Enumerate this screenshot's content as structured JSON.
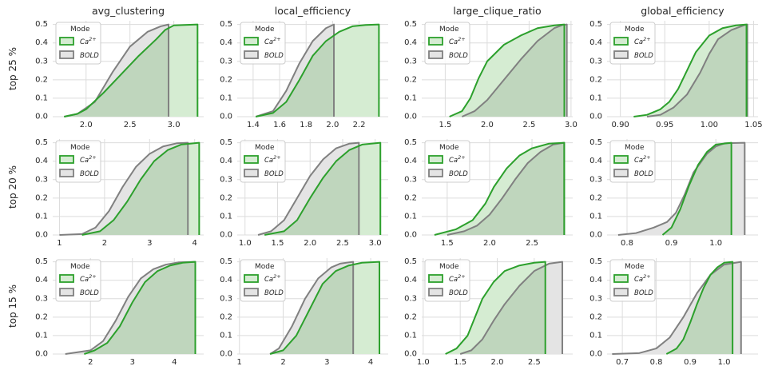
{
  "colors": {
    "ca": "#2ca02c",
    "bold": "#808080",
    "ca_fill": "#d5ecd2",
    "bold_fill": "#e4e4e4",
    "overlap_fill": "#bfd6bd",
    "grid": "#dcdcdc",
    "plot_bg": "#ffffff"
  },
  "row_labels": [
    "top 25 %",
    "top 20 %",
    "top 15 %"
  ],
  "col_titles": [
    "avg_clustering",
    "local_efficiency",
    "large_clique_ratio",
    "global_efficiency"
  ],
  "legend": {
    "title": "Mode",
    "entries": [
      {
        "key": "ca",
        "base": "Ca",
        "sup": "2+"
      },
      {
        "key": "bold",
        "base": "BOLD",
        "sup": ""
      }
    ]
  },
  "chart_data": [
    {
      "type": "area",
      "row": 0,
      "col": 0,
      "xlim": [
        1.62,
        3.34
      ],
      "ylim": [
        0,
        0.52
      ],
      "xticks": [
        2.0,
        2.5,
        3.0
      ],
      "xtick_labels": [
        "2.0",
        "2.5",
        "3.0"
      ],
      "yticks": [
        0,
        0.1,
        0.2,
        0.3,
        0.4,
        0.5
      ],
      "ytick_labels": [
        "0.0",
        "0.1",
        "0.2",
        "0.3",
        "0.4",
        "0.5"
      ],
      "series": [
        {
          "name": "Ca",
          "x": [
            1.75,
            1.9,
            2.0,
            2.2,
            2.4,
            2.6,
            2.8,
            2.9,
            3.0,
            3.27
          ],
          "y": [
            0,
            0.015,
            0.04,
            0.13,
            0.23,
            0.33,
            0.42,
            0.47,
            0.495,
            0.5
          ]
        },
        {
          "name": "BOLD",
          "x": [
            1.75,
            1.9,
            2.1,
            2.3,
            2.5,
            2.7,
            2.85,
            2.94
          ],
          "y": [
            0,
            0.015,
            0.08,
            0.24,
            0.38,
            0.46,
            0.49,
            0.5
          ]
        }
      ]
    },
    {
      "type": "area",
      "row": 0,
      "col": 1,
      "xlim": [
        1.28,
        2.42
      ],
      "ylim": [
        0,
        0.52
      ],
      "xticks": [
        1.4,
        1.6,
        1.8,
        2.0,
        2.2
      ],
      "xtick_labels": [
        "1.4",
        "1.6",
        "1.8",
        "2.0",
        "2.2"
      ],
      "yticks": [
        0,
        0.1,
        0.2,
        0.3,
        0.4,
        0.5
      ],
      "ytick_labels": [
        "0.0",
        "0.1",
        "0.2",
        "0.3",
        "0.4",
        "0.5"
      ],
      "series": [
        {
          "name": "Ca",
          "x": [
            1.42,
            1.55,
            1.65,
            1.75,
            1.85,
            1.95,
            2.05,
            2.15,
            2.25,
            2.35
          ],
          "y": [
            0,
            0.02,
            0.08,
            0.2,
            0.33,
            0.41,
            0.46,
            0.49,
            0.497,
            0.5
          ]
        },
        {
          "name": "BOLD",
          "x": [
            1.42,
            1.55,
            1.65,
            1.75,
            1.85,
            1.95,
            2.01
          ],
          "y": [
            0,
            0.03,
            0.14,
            0.29,
            0.41,
            0.48,
            0.5
          ]
        }
      ]
    },
    {
      "type": "area",
      "row": 0,
      "col": 2,
      "xlim": [
        1.22,
        3.02
      ],
      "ylim": [
        0,
        0.52
      ],
      "xticks": [
        1.5,
        2.0,
        2.5,
        3.0
      ],
      "xtick_labels": [
        "1.5",
        "2.0",
        "2.5",
        "3.0"
      ],
      "yticks": [
        0,
        0.1,
        0.2,
        0.3,
        0.4,
        0.5
      ],
      "ytick_labels": [
        "0.0",
        "0.1",
        "0.2",
        "0.3",
        "0.4",
        "0.5"
      ],
      "series": [
        {
          "name": "Ca",
          "x": [
            1.55,
            1.7,
            1.8,
            1.9,
            2.0,
            2.2,
            2.4,
            2.6,
            2.8,
            2.92
          ],
          "y": [
            0,
            0.03,
            0.1,
            0.21,
            0.3,
            0.39,
            0.44,
            0.48,
            0.495,
            0.5
          ]
        },
        {
          "name": "BOLD",
          "x": [
            1.7,
            1.85,
            2.0,
            2.2,
            2.4,
            2.6,
            2.8,
            2.9,
            2.95
          ],
          "y": [
            0,
            0.03,
            0.09,
            0.2,
            0.31,
            0.41,
            0.48,
            0.497,
            0.5
          ]
        }
      ]
    },
    {
      "type": "area",
      "row": 0,
      "col": 3,
      "xlim": [
        0.885,
        1.055
      ],
      "ylim": [
        0,
        0.52
      ],
      "xticks": [
        0.9,
        0.95,
        1.0,
        1.05
      ],
      "xtick_labels": [
        "0.90",
        "0.95",
        "1.00",
        "1.05"
      ],
      "yticks": [
        0,
        0.1,
        0.2,
        0.3,
        0.4,
        0.5
      ],
      "ytick_labels": [
        "0.0",
        "0.1",
        "0.2",
        "0.3",
        "0.4",
        "0.5"
      ],
      "series": [
        {
          "name": "Ca",
          "x": [
            0.915,
            0.93,
            0.945,
            0.955,
            0.965,
            0.975,
            0.985,
            1.0,
            1.015,
            1.03,
            1.042
          ],
          "y": [
            0,
            0.01,
            0.04,
            0.08,
            0.15,
            0.25,
            0.35,
            0.44,
            0.48,
            0.495,
            0.5
          ]
        },
        {
          "name": "BOLD",
          "x": [
            0.93,
            0.945,
            0.96,
            0.975,
            0.99,
            1.0,
            1.01,
            1.025,
            1.04,
            1.043
          ],
          "y": [
            0,
            0.01,
            0.05,
            0.12,
            0.24,
            0.34,
            0.42,
            0.47,
            0.497,
            0.5
          ]
        }
      ]
    },
    {
      "type": "area",
      "row": 1,
      "col": 0,
      "xlim": [
        0.85,
        4.2
      ],
      "ylim": [
        0,
        0.52
      ],
      "xticks": [
        1,
        2,
        3,
        4
      ],
      "xtick_labels": [
        "1",
        "2",
        "3",
        "4"
      ],
      "yticks": [
        0,
        0.1,
        0.2,
        0.3,
        0.4,
        0.5
      ],
      "ytick_labels": [
        "0.0",
        "0.1",
        "0.2",
        "0.3",
        "0.4",
        "0.5"
      ],
      "series": [
        {
          "name": "Ca",
          "x": [
            1.5,
            1.9,
            2.2,
            2.5,
            2.8,
            3.1,
            3.4,
            3.7,
            4.1
          ],
          "y": [
            0,
            0.02,
            0.08,
            0.18,
            0.3,
            0.4,
            0.46,
            0.49,
            0.5
          ]
        },
        {
          "name": "BOLD",
          "x": [
            1.0,
            1.5,
            1.8,
            2.1,
            2.4,
            2.7,
            3.0,
            3.3,
            3.6,
            3.85
          ],
          "y": [
            0,
            0.005,
            0.04,
            0.13,
            0.26,
            0.37,
            0.44,
            0.48,
            0.497,
            0.5
          ]
        }
      ]
    },
    {
      "type": "area",
      "row": 1,
      "col": 1,
      "xlim": [
        0.88,
        3.2
      ],
      "ylim": [
        0,
        0.52
      ],
      "xticks": [
        1.0,
        1.5,
        2.0,
        2.5,
        3.0
      ],
      "xtick_labels": [
        "1.0",
        "1.5",
        "2.0",
        "2.5",
        "3.0"
      ],
      "yticks": [
        0,
        0.1,
        0.2,
        0.3,
        0.4,
        0.5
      ],
      "ytick_labels": [
        "0.0",
        "0.1",
        "0.2",
        "0.3",
        "0.4",
        "0.5"
      ],
      "series": [
        {
          "name": "Ca",
          "x": [
            1.3,
            1.6,
            1.8,
            2.0,
            2.2,
            2.4,
            2.6,
            2.8,
            3.08
          ],
          "y": [
            0,
            0.02,
            0.08,
            0.2,
            0.31,
            0.4,
            0.46,
            0.49,
            0.5
          ]
        },
        {
          "name": "BOLD",
          "x": [
            1.2,
            1.4,
            1.6,
            1.8,
            2.0,
            2.2,
            2.4,
            2.6,
            2.75
          ],
          "y": [
            0,
            0.02,
            0.08,
            0.2,
            0.32,
            0.41,
            0.47,
            0.495,
            0.5
          ]
        }
      ]
    },
    {
      "type": "area",
      "row": 1,
      "col": 2,
      "xlim": [
        1.2,
        2.98
      ],
      "ylim": [
        0,
        0.52
      ],
      "xticks": [
        1.5,
        2.0,
        2.5
      ],
      "xtick_labels": [
        "1.5",
        "2.0",
        "2.5"
      ],
      "yticks": [
        0,
        0.1,
        0.2,
        0.3,
        0.4,
        0.5
      ],
      "ytick_labels": [
        "0.0",
        "0.1",
        "0.2",
        "0.3",
        "0.4",
        "0.5"
      ],
      "series": [
        {
          "name": "Ca",
          "x": [
            1.35,
            1.6,
            1.8,
            1.95,
            2.05,
            2.2,
            2.35,
            2.5,
            2.7,
            2.88
          ],
          "y": [
            0,
            0.03,
            0.08,
            0.17,
            0.26,
            0.36,
            0.43,
            0.47,
            0.495,
            0.5
          ]
        },
        {
          "name": "BOLD",
          "x": [
            1.5,
            1.7,
            1.85,
            2.0,
            2.15,
            2.3,
            2.45,
            2.6,
            2.75,
            2.88
          ],
          "y": [
            0,
            0.02,
            0.05,
            0.11,
            0.2,
            0.3,
            0.39,
            0.45,
            0.49,
            0.5
          ]
        }
      ]
    },
    {
      "type": "area",
      "row": 1,
      "col": 3,
      "xlim": [
        0.755,
        1.095
      ],
      "ylim": [
        0,
        0.52
      ],
      "xticks": [
        0.8,
        0.9,
        1.0
      ],
      "xtick_labels": [
        "0.8",
        "0.9",
        "1.0"
      ],
      "yticks": [
        0,
        0.1,
        0.2,
        0.3,
        0.4,
        0.5
      ],
      "ytick_labels": [
        "0.0",
        "0.1",
        "0.2",
        "0.3",
        "0.4",
        "0.5"
      ],
      "series": [
        {
          "name": "Ca",
          "x": [
            0.88,
            0.9,
            0.92,
            0.94,
            0.96,
            0.98,
            1.0,
            1.035
          ],
          "y": [
            0,
            0.04,
            0.14,
            0.27,
            0.38,
            0.45,
            0.49,
            0.5
          ]
        },
        {
          "name": "BOLD",
          "x": [
            0.78,
            0.82,
            0.86,
            0.89,
            0.91,
            0.93,
            0.95,
            0.98,
            1.0,
            1.02,
            1.065
          ],
          "y": [
            0,
            0.01,
            0.04,
            0.07,
            0.12,
            0.22,
            0.34,
            0.44,
            0.48,
            0.497,
            0.5
          ]
        }
      ]
    },
    {
      "type": "area",
      "row": 2,
      "col": 0,
      "xlim": [
        1.1,
        4.7
      ],
      "ylim": [
        0,
        0.52
      ],
      "xticks": [
        2,
        3,
        4
      ],
      "xtick_labels": [
        "2",
        "3",
        "4"
      ],
      "yticks": [
        0,
        0.1,
        0.2,
        0.3,
        0.4,
        0.5
      ],
      "ytick_labels": [
        "0.0",
        "0.1",
        "0.2",
        "0.3",
        "0.4",
        "0.5"
      ],
      "series": [
        {
          "name": "Ca",
          "x": [
            1.85,
            2.1,
            2.4,
            2.7,
            3.0,
            3.3,
            3.6,
            3.9,
            4.2,
            4.5
          ],
          "y": [
            0,
            0.02,
            0.06,
            0.15,
            0.28,
            0.39,
            0.45,
            0.48,
            0.495,
            0.5
          ]
        },
        {
          "name": "BOLD",
          "x": [
            1.4,
            2.0,
            2.3,
            2.6,
            2.9,
            3.2,
            3.5,
            3.8,
            4.1,
            4.5
          ],
          "y": [
            0,
            0.02,
            0.07,
            0.18,
            0.31,
            0.41,
            0.46,
            0.485,
            0.497,
            0.5
          ]
        }
      ]
    },
    {
      "type": "area",
      "row": 2,
      "col": 1,
      "xlim": [
        0.95,
        4.4
      ],
      "ylim": [
        0,
        0.52
      ],
      "xticks": [
        1,
        2,
        3,
        4
      ],
      "xtick_labels": [
        "1",
        "2",
        "3",
        "4"
      ],
      "yticks": [
        0,
        0.1,
        0.2,
        0.3,
        0.4,
        0.5
      ],
      "ytick_labels": [
        "0.0",
        "0.1",
        "0.2",
        "0.3",
        "0.4",
        "0.5"
      ],
      "series": [
        {
          "name": "Ca",
          "x": [
            1.7,
            2.0,
            2.3,
            2.6,
            2.9,
            3.2,
            3.5,
            3.8,
            4.2
          ],
          "y": [
            0,
            0.02,
            0.1,
            0.24,
            0.38,
            0.45,
            0.48,
            0.495,
            0.5
          ]
        },
        {
          "name": "BOLD",
          "x": [
            1.7,
            1.9,
            2.2,
            2.5,
            2.8,
            3.1,
            3.3,
            3.5,
            3.6
          ],
          "y": [
            0,
            0.03,
            0.15,
            0.3,
            0.41,
            0.47,
            0.49,
            0.497,
            0.5
          ]
        }
      ]
    },
    {
      "type": "area",
      "row": 2,
      "col": 2,
      "xlim": [
        0.98,
        3.02
      ],
      "ylim": [
        0,
        0.52
      ],
      "xticks": [
        1.0,
        1.5,
        2.0,
        2.5
      ],
      "xtick_labels": [
        "1.0",
        "1.5",
        "2.0",
        "2.5"
      ],
      "yticks": [
        0,
        0.1,
        0.2,
        0.3,
        0.4,
        0.5
      ],
      "ytick_labels": [
        "0.0",
        "0.1",
        "0.2",
        "0.3",
        "0.4",
        "0.5"
      ],
      "series": [
        {
          "name": "Ca",
          "x": [
            1.3,
            1.45,
            1.6,
            1.7,
            1.8,
            1.95,
            2.1,
            2.3,
            2.5,
            2.65
          ],
          "y": [
            0,
            0.03,
            0.1,
            0.2,
            0.3,
            0.39,
            0.45,
            0.48,
            0.495,
            0.5
          ]
        },
        {
          "name": "BOLD",
          "x": [
            1.5,
            1.65,
            1.8,
            1.95,
            2.1,
            2.3,
            2.5,
            2.7,
            2.88
          ],
          "y": [
            0,
            0.02,
            0.08,
            0.18,
            0.27,
            0.37,
            0.45,
            0.49,
            0.5
          ]
        }
      ]
    },
    {
      "type": "area",
      "row": 2,
      "col": 3,
      "xlim": [
        0.655,
        1.1
      ],
      "ylim": [
        0,
        0.52
      ],
      "xticks": [
        0.7,
        0.8,
        0.9,
        1.0
      ],
      "xtick_labels": [
        "0.7",
        "0.8",
        "0.9",
        "1.0"
      ],
      "yticks": [
        0,
        0.1,
        0.2,
        0.3,
        0.4,
        0.5
      ],
      "ytick_labels": [
        "0.0",
        "0.1",
        "0.2",
        "0.3",
        "0.4",
        "0.5"
      ],
      "series": [
        {
          "name": "Ca",
          "x": [
            0.83,
            0.86,
            0.88,
            0.9,
            0.92,
            0.94,
            0.96,
            0.98,
            1.0,
            1.025
          ],
          "y": [
            0,
            0.03,
            0.08,
            0.17,
            0.27,
            0.36,
            0.43,
            0.47,
            0.495,
            0.5
          ]
        },
        {
          "name": "BOLD",
          "x": [
            0.67,
            0.75,
            0.8,
            0.84,
            0.88,
            0.92,
            0.96,
            1.0,
            1.05
          ],
          "y": [
            0,
            0.005,
            0.03,
            0.09,
            0.2,
            0.33,
            0.43,
            0.485,
            0.5
          ]
        }
      ]
    }
  ]
}
